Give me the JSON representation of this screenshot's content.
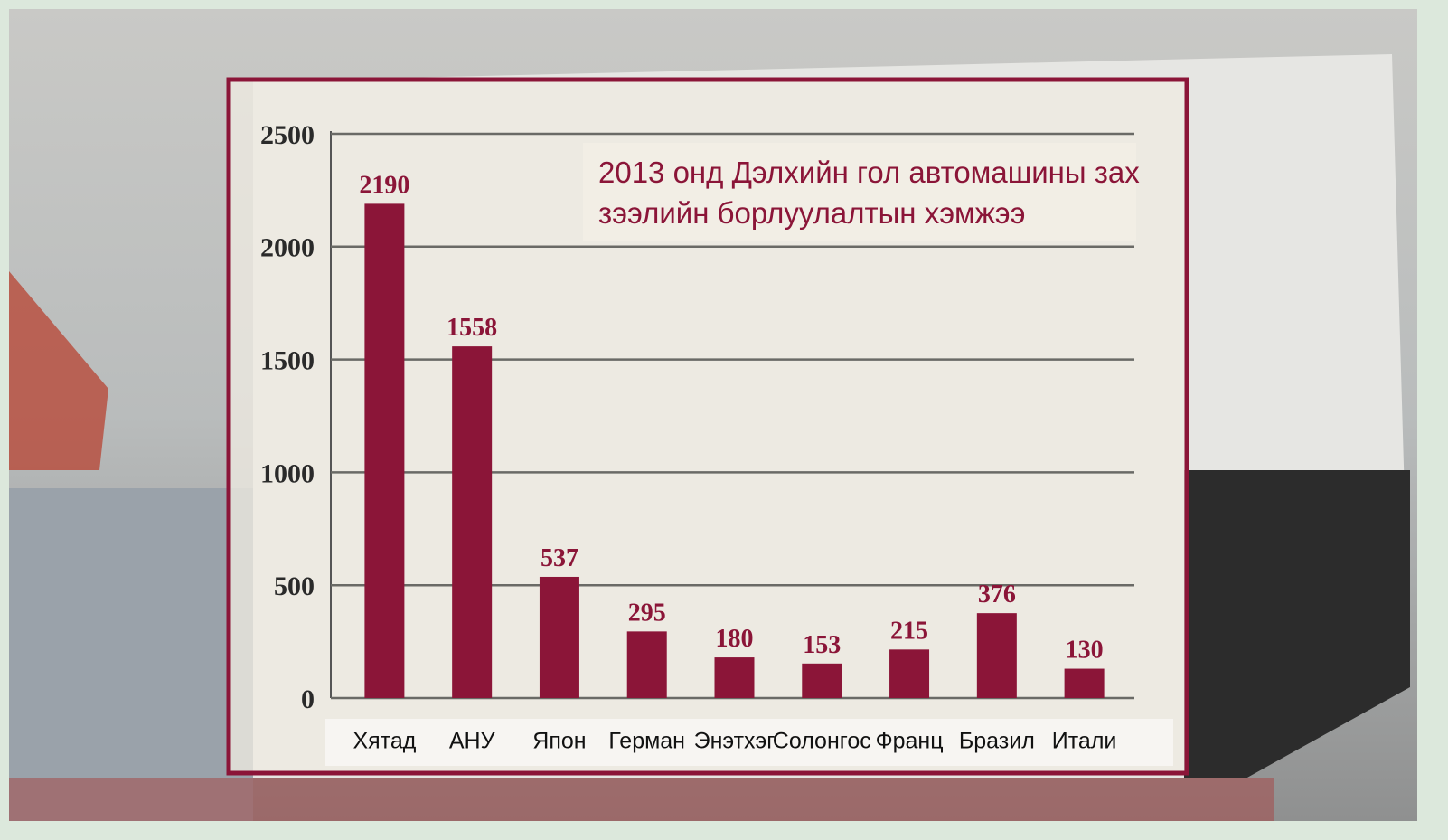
{
  "chart_data": {
    "type": "bar",
    "title": "2013 онд Дэлхийн гол автомашины зах зээлийн борлуулалтын хэмжээ",
    "categories": [
      "Хятад",
      "АНУ",
      "Япон",
      "Герман",
      "Энэтхэг",
      "Солонгос",
      "Франц",
      "Бразил",
      "Итали"
    ],
    "values": [
      2190,
      1558,
      537,
      295,
      180,
      153,
      215,
      376,
      130
    ],
    "color": "#8b1538",
    "ylim": [
      0,
      2500
    ],
    "yticks": [
      0,
      500,
      1000,
      1500,
      2000,
      2500
    ],
    "grid": true
  }
}
